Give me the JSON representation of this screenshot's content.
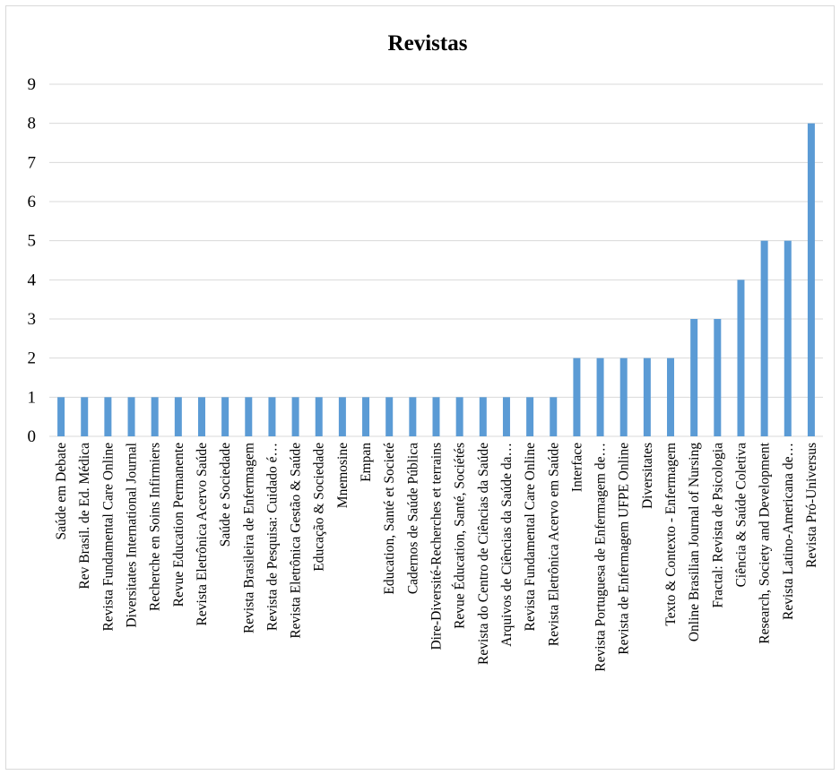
{
  "chart_data": {
    "type": "bar",
    "title": "Revistas",
    "xlabel": "",
    "ylabel": "",
    "ylim": [
      0,
      9
    ],
    "yticks": [
      "0",
      "1",
      "2",
      "3",
      "4",
      "5",
      "6",
      "7",
      "8",
      "9"
    ],
    "grid": true,
    "legend": "none",
    "bar_color": "#5b9bd5",
    "categories": [
      "Saúde em Debate",
      "Rev Brasil. de Ed. Médica",
      "Revista Fundamental Care Online",
      "Diversitates International Journal",
      "Recherche en Soins Infirmiers",
      "Revue Education Permanente",
      "Revista Eletrônica Acervo Saúde",
      "Saúde e Sociedade",
      "Revista Brasileira de Enfermagem",
      "Revista de Pesquisa: Cuidado é…",
      "Revista Eletrônica Gestão & Saúde",
      "Educação & Sociedade",
      "Mnemosine",
      "Empan",
      "Education, Santé et Societé",
      "Cadernos de Saúde Pública",
      "Dire-Diversité-Recherches et terrains",
      "Revue Éducation, Santé, Sociétés",
      "Revista do Centro de Ciências da Saúde",
      "Arquivos de Ciências da Saúde da…",
      "Revista Fundamental Care Online",
      "Revista Eletrônica Acervo em Saúde",
      "Interface",
      "Revista Portuguesa de Enfermagem de…",
      "Revista de Enfermagem UFPE Online",
      "Diversitates",
      "Texto & Contexto - Enfermagem",
      "Online Brasilian Journal of Nursing",
      "Fractal: Revista de Psicologia",
      "Ciência & Saúde Coletiva",
      "Research, Society and Development",
      "Revista Latino-Americana de…",
      "Revista Pró-Universus"
    ],
    "values": [
      1,
      1,
      1,
      1,
      1,
      1,
      1,
      1,
      1,
      1,
      1,
      1,
      1,
      1,
      1,
      1,
      1,
      1,
      1,
      1,
      1,
      1,
      2,
      2,
      2,
      2,
      2,
      3,
      3,
      4,
      5,
      5,
      8
    ]
  }
}
